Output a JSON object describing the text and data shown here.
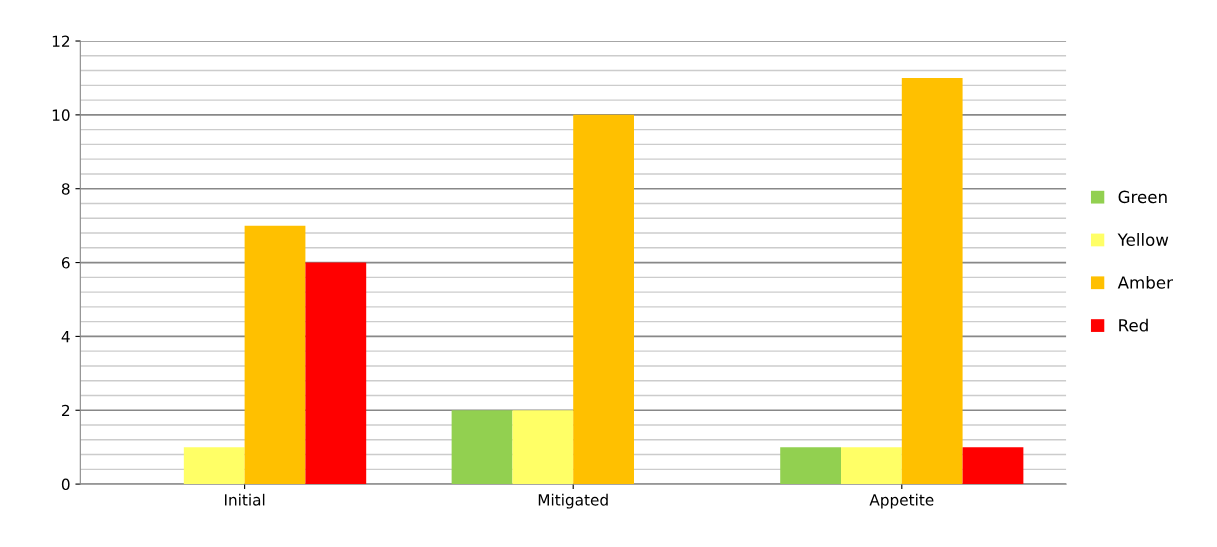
{
  "chart_data": {
    "type": "bar",
    "categories": [
      "Initial",
      "Mitigated",
      "Appetite"
    ],
    "series": [
      {
        "name": "Green",
        "color": "#92d050",
        "values": [
          0,
          2,
          1
        ]
      },
      {
        "name": "Yellow",
        "color": "#ffff66",
        "values": [
          1,
          2,
          1
        ]
      },
      {
        "name": "Amber",
        "color": "#ffc000",
        "values": [
          7,
          10,
          11
        ]
      },
      {
        "name": "Red",
        "color": "#ff0000",
        "values": [
          6,
          0,
          1
        ]
      }
    ],
    "ylim": [
      0,
      12
    ],
    "yticks": [
      0,
      2,
      4,
      6,
      8,
      10,
      12
    ],
    "grid": "y",
    "legend": "right"
  }
}
